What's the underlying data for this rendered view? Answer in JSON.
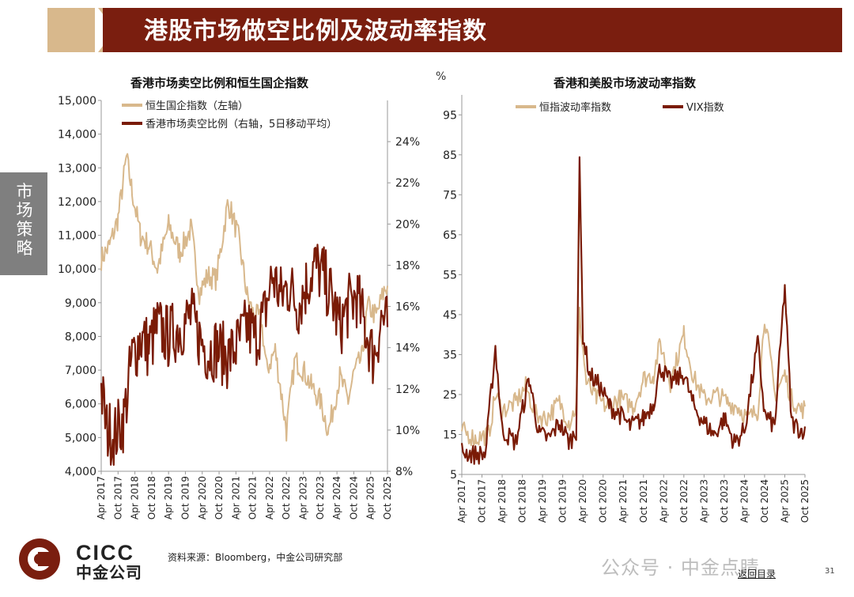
{
  "header": {
    "title": "港股市场做空比例及波动率指数"
  },
  "sidebar_tab": {
    "label": "市场策略"
  },
  "footer": {
    "source": "资料来源：Bloomberg，中金公司研究部",
    "logo_text": "CICC",
    "logo_cn": "中金公司",
    "watermark": "公众号 · 中金点睛",
    "back_link": "返回目录",
    "page_number": "31"
  },
  "colors": {
    "brand": "#7a1e0f",
    "series_light": "#d8b88c",
    "series_dark": "#7a1b06",
    "tab_gray": "#7f7f7f"
  },
  "chart_data": [
    {
      "type": "line",
      "title": "香港市场卖空比例和恒生国企指数",
      "x_ticks": [
        "Apr 2017",
        "Oct 2017",
        "Apr 2018",
        "Oct 2018",
        "Apr 2019",
        "Oct 2019",
        "Apr 2020",
        "Oct 2020",
        "Apr 2021",
        "Oct 2021",
        "Apr 2022",
        "Oct 2022",
        "Apr 2023",
        "Oct 2023",
        "Apr 2024",
        "Oct 2024",
        "Apr 2025",
        "Oct 2025"
      ],
      "y_left": {
        "ticks": [
          "4,000",
          "5,000",
          "6,000",
          "7,000",
          "8,000",
          "9,000",
          "10,000",
          "11,000",
          "12,000",
          "13,000",
          "14,000",
          "15,000"
        ],
        "ylim": [
          4000,
          15000
        ]
      },
      "y_right": {
        "ticks": [
          "8%",
          "10%",
          "12%",
          "14%",
          "16%",
          "18%",
          "20%",
          "22%",
          "24%"
        ],
        "ylim": [
          8,
          26
        ]
      },
      "series": [
        {
          "name": "恒生国企指数（左轴）",
          "axis": "left",
          "color": "#d8b88c",
          "x": [
            "2017-04",
            "2017-07",
            "2017-10",
            "2018-01",
            "2018-03",
            "2018-06",
            "2018-09",
            "2018-12",
            "2019-04",
            "2019-08",
            "2019-12",
            "2020-03",
            "2020-06",
            "2020-09",
            "2021-01",
            "2021-02",
            "2021-05",
            "2021-08",
            "2021-10",
            "2022-01",
            "2022-03",
            "2022-06",
            "2022-10",
            "2023-01",
            "2023-04",
            "2023-07",
            "2023-10",
            "2024-01",
            "2024-05",
            "2024-08",
            "2024-10",
            "2025-01",
            "2025-03",
            "2025-06",
            "2025-09",
            "2025-10"
          ],
          "values": [
            10300,
            10700,
            11500,
            13300,
            12300,
            11000,
            10700,
            10000,
            11300,
            10500,
            11200,
            9300,
            9800,
            9700,
            11900,
            11800,
            10900,
            9200,
            8700,
            8500,
            7000,
            7600,
            5200,
            7300,
            7000,
            6500,
            6100,
            5200,
            6800,
            6100,
            6900,
            7400,
            8900,
            8600,
            9400,
            9500
          ]
        },
        {
          "name": "香港市场卖空比例（右轴，5日移动平均）",
          "axis": "right",
          "color": "#7a1b06",
          "x": [
            "2017-04",
            "2017-06",
            "2017-09",
            "2017-12",
            "2018-03",
            "2018-06",
            "2018-09",
            "2018-12",
            "2019-04",
            "2019-08",
            "2019-12",
            "2020-03",
            "2020-06",
            "2020-09",
            "2021-01",
            "2021-04",
            "2021-08",
            "2021-11",
            "2022-02",
            "2022-05",
            "2022-08",
            "2022-11",
            "2023-02",
            "2023-05",
            "2023-08",
            "2023-11",
            "2024-02",
            "2024-05",
            "2024-08",
            "2024-11",
            "2025-02",
            "2025-05",
            "2025-08",
            "2025-10"
          ],
          "values": [
            12.0,
            10.0,
            9.8,
            10.5,
            13.5,
            14.5,
            14.0,
            15.0,
            14.5,
            15.0,
            15.5,
            14.5,
            13.8,
            14.0,
            13.5,
            14.0,
            15.0,
            14.5,
            15.5,
            17.5,
            16.5,
            17.0,
            16.0,
            17.0,
            18.0,
            17.5,
            16.5,
            15.0,
            16.0,
            16.5,
            15.0,
            13.5,
            15.5,
            15.0
          ]
        }
      ]
    },
    {
      "type": "line",
      "title": "香港和美股市场波动率指数",
      "unit": "%",
      "x_ticks": [
        "Apr 2017",
        "Oct 2017",
        "Apr 2018",
        "Oct 2018",
        "Apr 2019",
        "Oct 2019",
        "Apr 2020",
        "Oct 2020",
        "Apr 2021",
        "Oct 2021",
        "Apr 2022",
        "Oct 2022",
        "Apr 2023",
        "Oct 2023",
        "Apr 2024",
        "Oct 2024",
        "Apr 2025",
        "Oct 2025"
      ],
      "y": {
        "ticks": [
          "5",
          "15",
          "25",
          "35",
          "45",
          "55",
          "65",
          "75",
          "85",
          "95"
        ],
        "ylim": [
          5,
          100
        ]
      },
      "series": [
        {
          "name": "恒指波动率指数",
          "color": "#d8b88c",
          "x": [
            "2017-04",
            "2017-08",
            "2017-12",
            "2018-02",
            "2018-04",
            "2018-08",
            "2018-11",
            "2019-02",
            "2019-05",
            "2019-09",
            "2019-12",
            "2020-02",
            "2020-03",
            "2020-05",
            "2020-08",
            "2020-11",
            "2021-03",
            "2021-07",
            "2021-10",
            "2022-01",
            "2022-03",
            "2022-06",
            "2022-10",
            "2023-01",
            "2023-04",
            "2023-08",
            "2023-11",
            "2024-02",
            "2024-05",
            "2024-08",
            "2024-10",
            "2025-01",
            "2025-04",
            "2025-06",
            "2025-09",
            "2025-10"
          ],
          "values": [
            16,
            14,
            15,
            25,
            21,
            23,
            27,
            20,
            19,
            23,
            18,
            22,
            45,
            28,
            24,
            22,
            24,
            22,
            29,
            30,
            38,
            28,
            40,
            29,
            24,
            25,
            23,
            22,
            19,
            21,
            45,
            25,
            30,
            24,
            21,
            22
          ]
        },
        {
          "name": "VIX指数",
          "color": "#7a1b06",
          "x": [
            "2017-04",
            "2017-07",
            "2017-11",
            "2018-02",
            "2018-04",
            "2018-08",
            "2018-12",
            "2019-03",
            "2019-06",
            "2019-09",
            "2019-12",
            "2020-02",
            "2020-03",
            "2020-04",
            "2020-06",
            "2020-09",
            "2020-12",
            "2021-03",
            "2021-06",
            "2021-10",
            "2022-01",
            "2022-03",
            "2022-06",
            "2022-10",
            "2023-01",
            "2023-04",
            "2023-07",
            "2023-10",
            "2024-01",
            "2024-04",
            "2024-08",
            "2024-10",
            "2025-01",
            "2025-04",
            "2025-06",
            "2025-09",
            "2025-10"
          ],
          "values": [
            11,
            10,
            10,
            37,
            16,
            13,
            29,
            15,
            14,
            18,
            13,
            16,
            82,
            40,
            30,
            27,
            22,
            20,
            17,
            19,
            23,
            32,
            28,
            30,
            22,
            18,
            15,
            19,
            13,
            16,
            38,
            20,
            17,
            52,
            18,
            16,
            17
          ]
        }
      ]
    }
  ]
}
